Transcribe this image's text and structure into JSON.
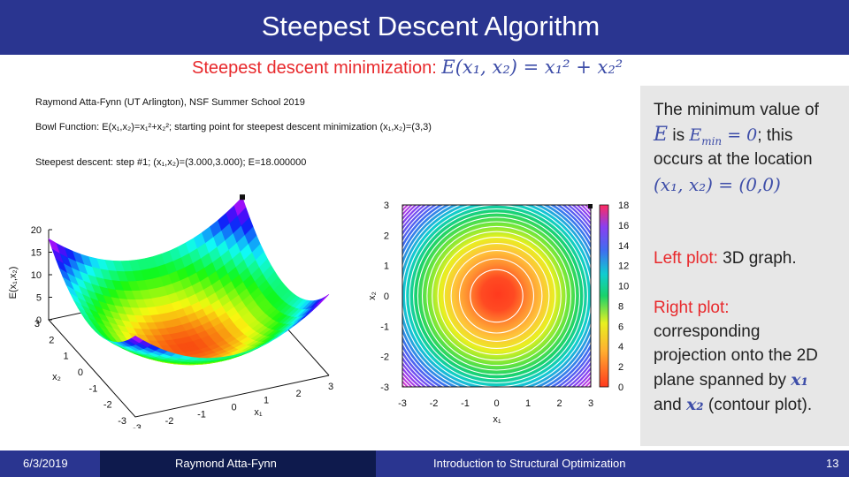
{
  "slide": {
    "title": "Steepest Descent Algorithm",
    "subtitle_prefix": "Steepest descent minimization: ",
    "subtitle_formula": "E(x₁, x₂) = x₁² + x₂²"
  },
  "figure": {
    "header_line1": "Raymond Atta-Fynn (UT Arlington), NSF Summer School 2019",
    "header_line2": "Bowl Function: E(x₁,x₂)=x₁²+x₂²;  starting point for steepest descent minimization (x₁,x₂)=(3,3)",
    "header_line3": "Steepest descent: step #1;  (x₁,x₂)=(3.000,3.000);  E=18.000000"
  },
  "chart_data": [
    {
      "type": "surface",
      "function": "E(x1,x2)=x1^2+x2^2",
      "xlabel": "x₁",
      "ylabel": "x₂",
      "zlabel": "E(x₁,x₂)",
      "x_ticks": [
        "-3",
        "-2",
        "-1",
        "0",
        "1",
        "2",
        "3"
      ],
      "y_ticks": [
        "-3",
        "-2",
        "-1",
        "0",
        "1",
        "2",
        "3"
      ],
      "z_ticks": [
        "0",
        "5",
        "10",
        "15",
        "20"
      ],
      "xlim": [
        -3,
        3
      ],
      "ylim": [
        -3,
        3
      ],
      "zlim": [
        0,
        20
      ],
      "marker": {
        "x1": 3,
        "x2": 3,
        "E": 18
      }
    },
    {
      "type": "heatmap",
      "subtype": "contour",
      "function": "E(x1,x2)=x1^2+x2^2",
      "xlabel": "x₁",
      "ylabel": "x₂",
      "x_ticks": [
        "-3",
        "-2",
        "-1",
        "0",
        "1",
        "2",
        "3"
      ],
      "y_ticks": [
        "3",
        "2",
        "1",
        "0",
        "-1",
        "-2",
        "-3"
      ],
      "colorbar_ticks": [
        "18",
        "16",
        "14",
        "12",
        "10",
        "8",
        "6",
        "4",
        "2",
        "0"
      ],
      "xlim": [
        -3,
        3
      ],
      "ylim": [
        -3,
        3
      ],
      "clim": [
        0,
        18
      ],
      "marker": {
        "x1": 3,
        "x2": 3
      }
    }
  ],
  "side_panel": {
    "l1": "The minimum value of",
    "l2_var": "E",
    "l2_mid": " is ",
    "l2_math": "E",
    "l2_sub": "min",
    "l2_eq": " = 0",
    "l2_end": "; this",
    "l3": "occurs at the location",
    "l4_math": "(x₁, x₂) = (0,0)",
    "left_label": "Left plot:",
    "left_text": " 3D graph.",
    "right_label": "Right plot:",
    "r1": "corresponding",
    "r2": "projection onto the 2D",
    "r3": "plane spanned by ",
    "r3_math": "x₁",
    "r4_pre": "and ",
    "r4_math": "x₂",
    "r4_post": " (contour plot)."
  },
  "footer": {
    "date": "6/3/2019",
    "author": "Raymond Atta-Fynn",
    "course": "Introduction to Structural Optimization",
    "page": "13"
  }
}
